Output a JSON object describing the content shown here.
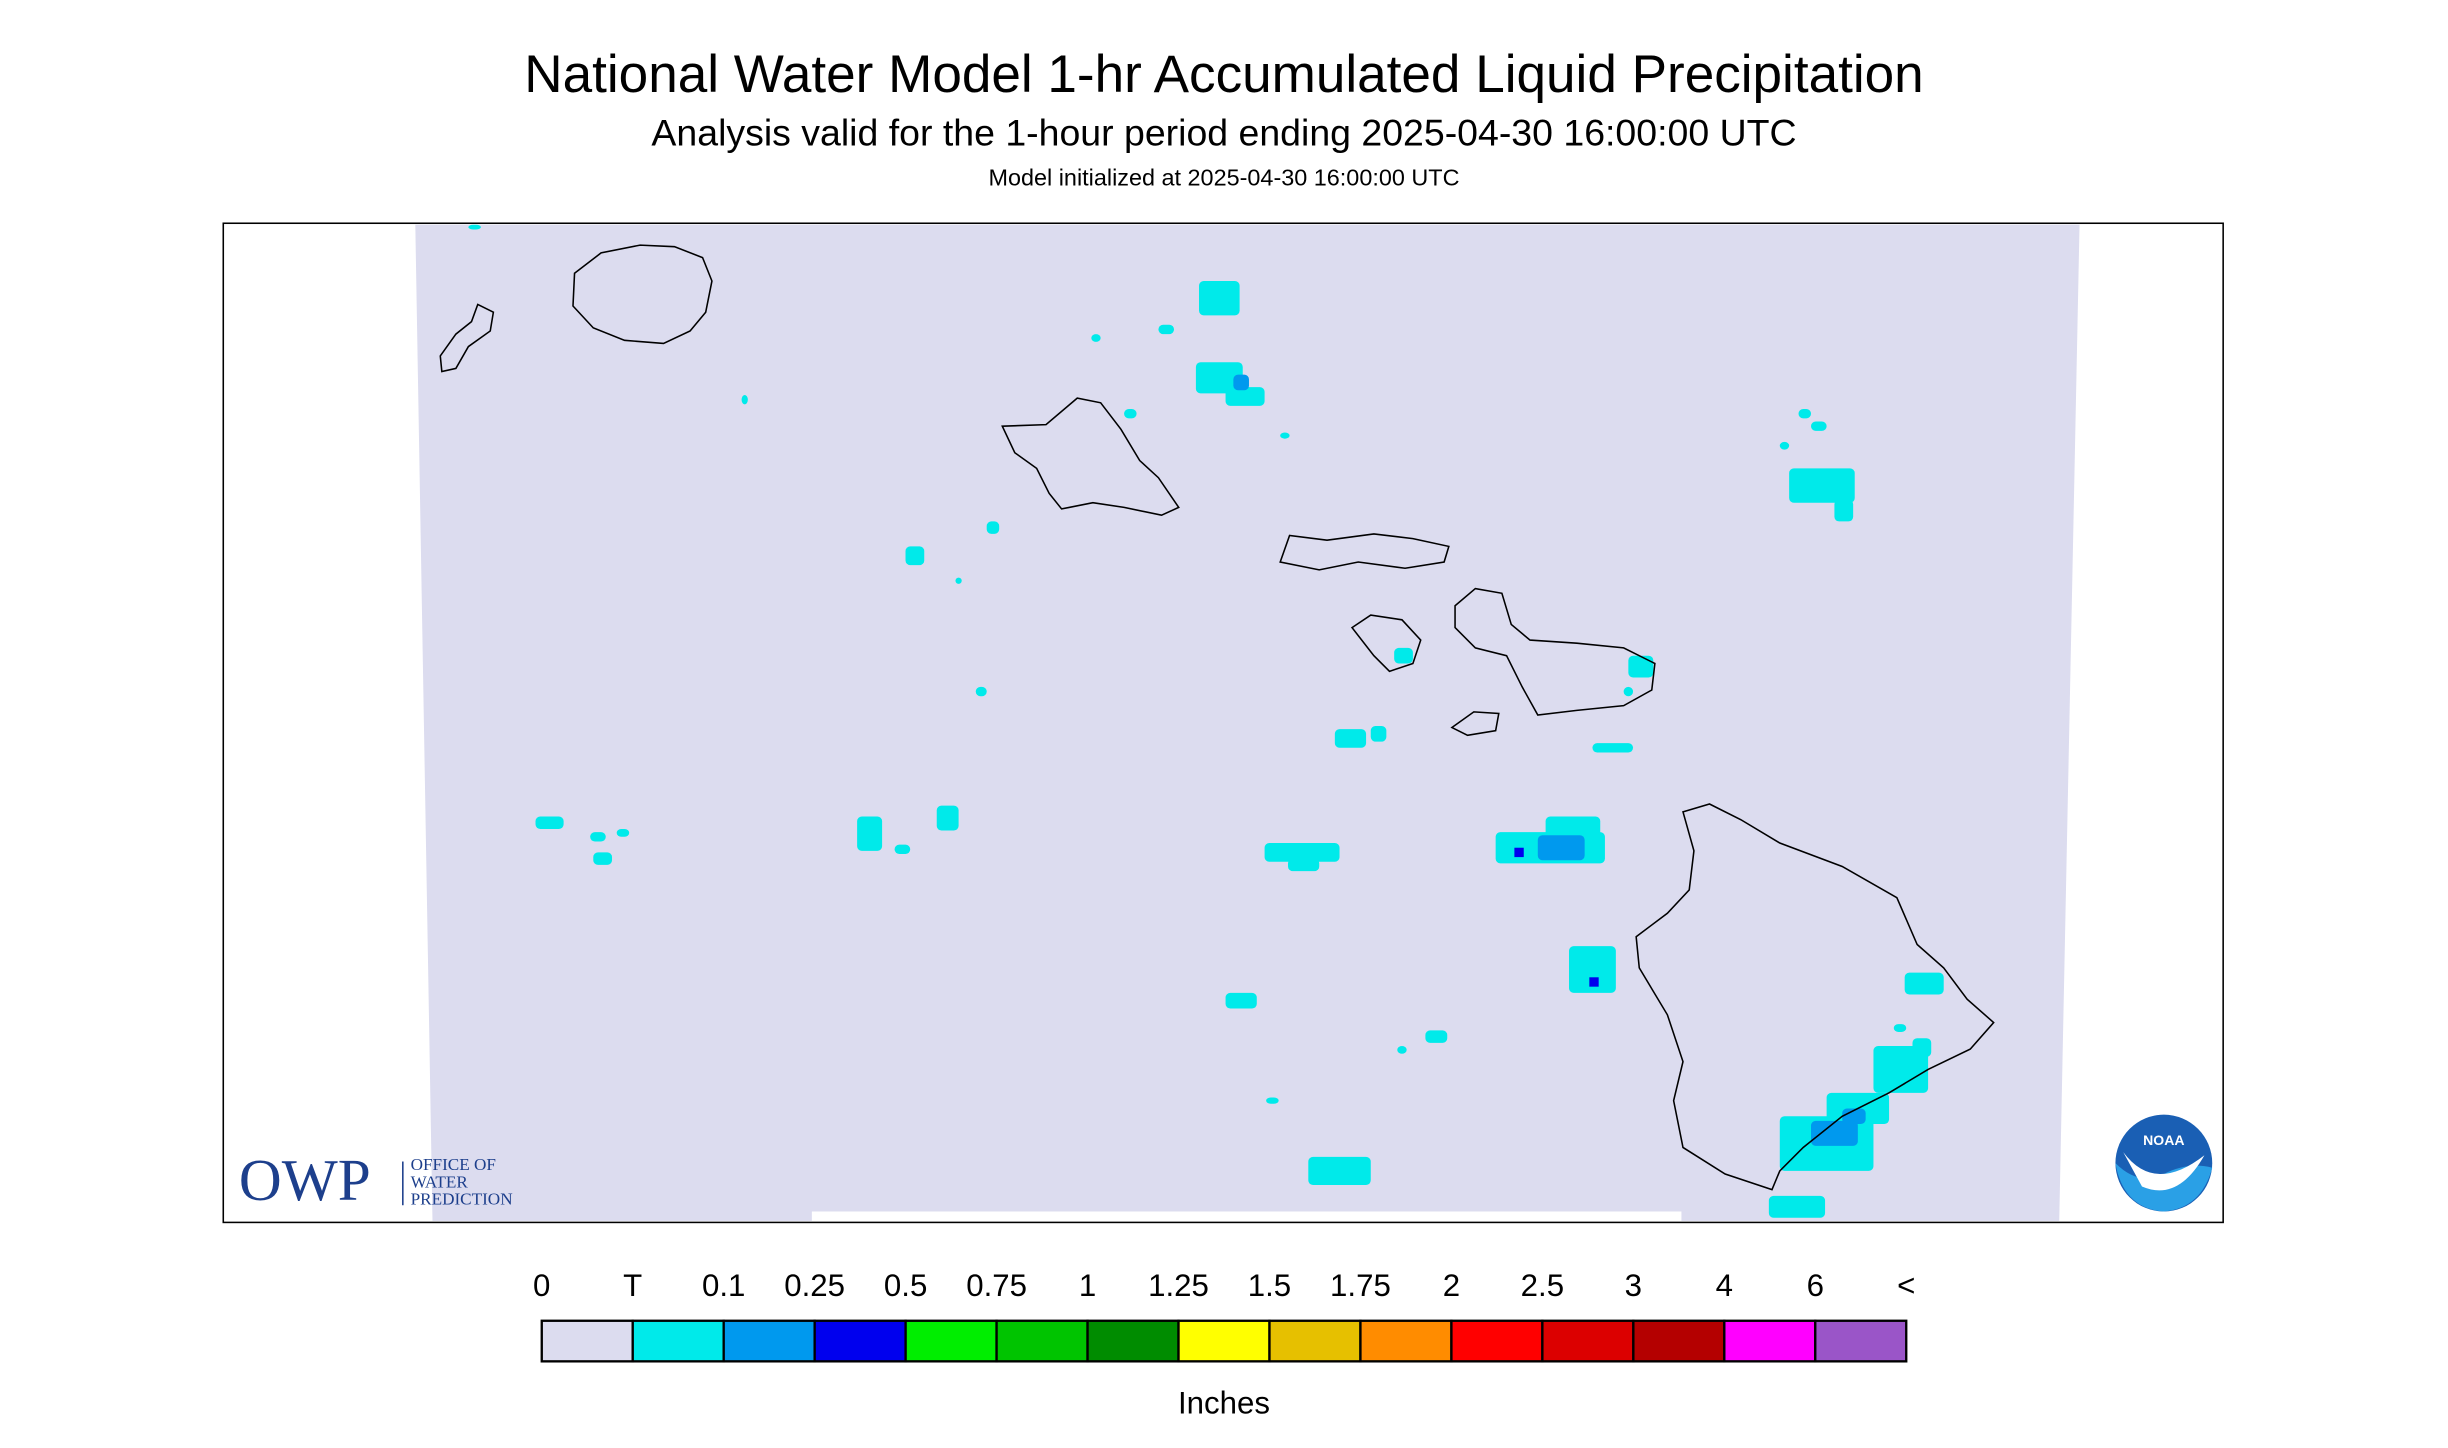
{
  "header": {
    "title": "National Water Model 1-hr Accumulated Liquid Precipitation",
    "subtitle": "Analysis valid for the 1-hour period ending 2025-04-30 16:00:00 UTC",
    "note": "Model initialized at 2025-04-30 16:00:00 UTC"
  },
  "legend": {
    "labels": [
      "0",
      "T",
      "0.1",
      "0.25",
      "0.5",
      "0.75",
      "1",
      "1.25",
      "1.5",
      "1.75",
      "2",
      "2.5",
      "3",
      "4",
      "6",
      "<"
    ],
    "colors": [
      "#dcdcef",
      "#00eaea",
      "#0099ee",
      "#0000ee",
      "#00ee00",
      "#00c400",
      "#008c00",
      "#ffff00",
      "#e6c000",
      "#ff8c00",
      "#ff0000",
      "#dc0000",
      "#b40000",
      "#ff00ff",
      "#9a55c8"
    ],
    "unit": "Inches"
  },
  "logos": {
    "owp": "OWP",
    "owp_lines": [
      "OFFICE OF",
      "WATER",
      "PREDICTION"
    ],
    "noaa": "NOAA"
  }
}
